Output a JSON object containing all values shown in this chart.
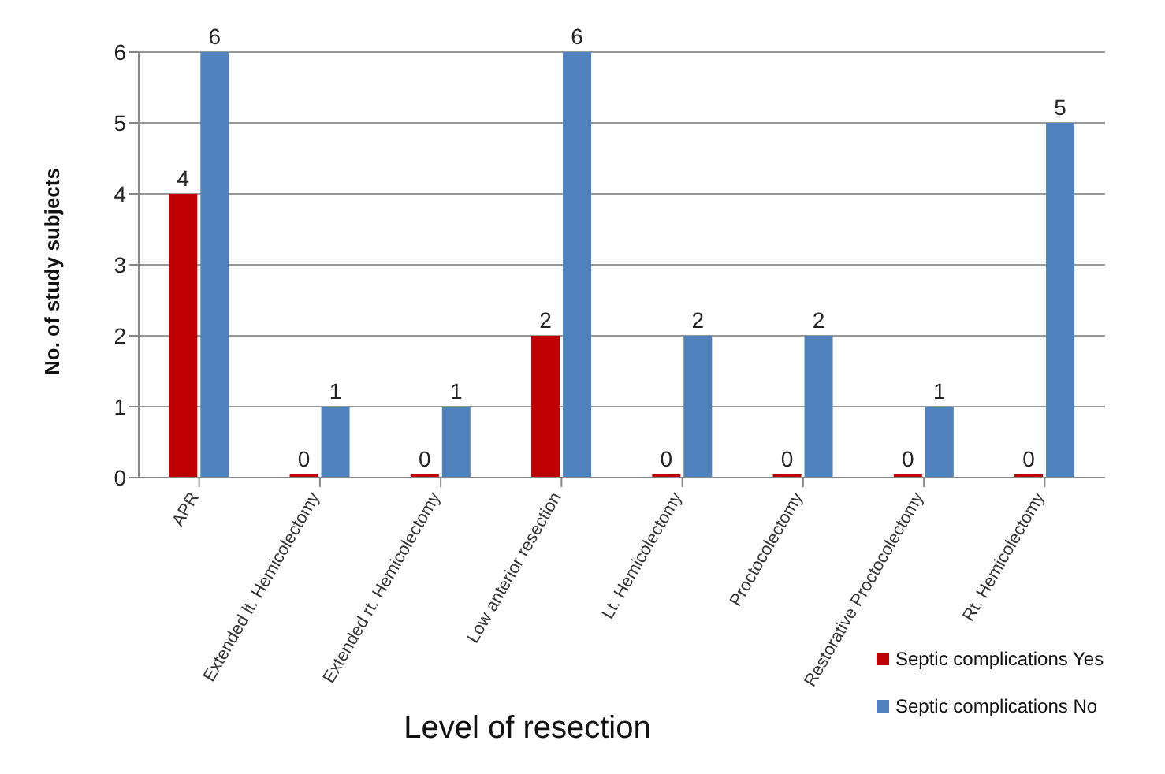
{
  "chart_data": {
    "type": "bar",
    "xlabel": "Level of resection",
    "ylabel": "No. of study subjects",
    "categories": [
      "APR",
      "Extended lt. Hemicolectomy",
      "Extended rt. Hemicolectomy",
      "Low anterior resection",
      "Lt. Hemicolectomy",
      "Proctocolectomy",
      "Restorative Proctocolectomy",
      "Rt. Hemicolectomy"
    ],
    "series": [
      {
        "name": "Septic complications Yes",
        "color": "#c00000",
        "values": [
          4,
          0,
          0,
          2,
          0,
          0,
          0,
          0
        ]
      },
      {
        "name": "Septic complications No",
        "color": "#4f81bd",
        "values": [
          6,
          1,
          1,
          6,
          2,
          2,
          1,
          5
        ]
      }
    ],
    "ylim": [
      0,
      6
    ],
    "yticks": [
      0,
      1,
      2,
      3,
      4,
      5,
      6
    ],
    "grid": "y",
    "legend": "bottom right",
    "data_labels": true
  }
}
